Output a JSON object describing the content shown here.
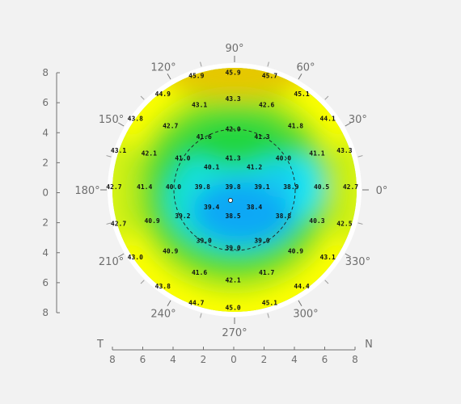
{
  "chart_data": {
    "type": "heatmap",
    "title": "",
    "colors": {
      "low": "#0aa8f5",
      "mid_low": "#14e6f2",
      "mid": "#22d640",
      "mid_high": "#a9e810",
      "high": "#ffff00",
      "max": "#e6c800",
      "background": "#f2f2f2",
      "axis": "#707070"
    },
    "angle_labels": [
      {
        "angle": 0,
        "label": "0°"
      },
      {
        "angle": 30,
        "label": "30°"
      },
      {
        "angle": 60,
        "label": "60°"
      },
      {
        "angle": 90,
        "label": "90°"
      },
      {
        "angle": 120,
        "label": "120°"
      },
      {
        "angle": 150,
        "label": "150°"
      },
      {
        "angle": 180,
        "label": "180°"
      },
      {
        "angle": 210,
        "label": "210°"
      },
      {
        "angle": 240,
        "label": "240°"
      },
      {
        "angle": 270,
        "label": "270°"
      },
      {
        "angle": 300,
        "label": "300°"
      },
      {
        "angle": 330,
        "label": "330°"
      }
    ],
    "x_axis": {
      "left_label": "T",
      "right_label": "N",
      "ticks": [
        "8",
        "6",
        "4",
        "2",
        "0",
        "2",
        "4",
        "6",
        "8"
      ],
      "range": [
        -8,
        8
      ]
    },
    "y_axis": {
      "ticks": [
        "8",
        "6",
        "4",
        "2",
        "0",
        "2",
        "4",
        "6",
        "8"
      ],
      "range": [
        -8,
        8
      ]
    },
    "values": [
      {
        "x": -2.5,
        "y": 7.5,
        "v": "45.9"
      },
      {
        "x": -0.1,
        "y": 7.7,
        "v": "45.9"
      },
      {
        "x": 2.3,
        "y": 7.5,
        "v": "45.7"
      },
      {
        "x": -4.7,
        "y": 6.3,
        "v": "44.9"
      },
      {
        "x": 4.4,
        "y": 6.3,
        "v": "45.1"
      },
      {
        "x": -2.3,
        "y": 5.6,
        "v": "43.1"
      },
      {
        "x": -0.1,
        "y": 6.0,
        "v": "43.3"
      },
      {
        "x": 2.1,
        "y": 5.6,
        "v": "42.6"
      },
      {
        "x": -6.5,
        "y": 4.7,
        "v": "43.8"
      },
      {
        "x": 6.1,
        "y": 4.7,
        "v": "44.1"
      },
      {
        "x": -4.2,
        "y": 4.2,
        "v": "42.7"
      },
      {
        "x": -0.1,
        "y": 4.0,
        "v": "42.0"
      },
      {
        "x": 4.0,
        "y": 4.2,
        "v": "41.8"
      },
      {
        "x": -2.0,
        "y": 3.5,
        "v": "41.6"
      },
      {
        "x": 1.8,
        "y": 3.5,
        "v": "41.3"
      },
      {
        "x": -7.6,
        "y": 2.6,
        "v": "43.1"
      },
      {
        "x": -5.6,
        "y": 2.4,
        "v": "42.1"
      },
      {
        "x": -3.4,
        "y": 2.1,
        "v": "41.0"
      },
      {
        "x": -0.1,
        "y": 2.1,
        "v": "41.3"
      },
      {
        "x": 3.2,
        "y": 2.1,
        "v": "40.0"
      },
      {
        "x": 5.4,
        "y": 2.4,
        "v": "41.1"
      },
      {
        "x": 7.2,
        "y": 2.6,
        "v": "43.3"
      },
      {
        "x": -1.5,
        "y": 1.5,
        "v": "40.1"
      },
      {
        "x": 1.3,
        "y": 1.5,
        "v": "41.2"
      },
      {
        "x": -7.9,
        "y": 0.2,
        "v": "42.7"
      },
      {
        "x": -5.9,
        "y": 0.2,
        "v": "41.4"
      },
      {
        "x": -4.0,
        "y": 0.2,
        "v": "40.0"
      },
      {
        "x": -2.1,
        "y": 0.2,
        "v": "39.8"
      },
      {
        "x": -0.1,
        "y": 0.2,
        "v": "39.8"
      },
      {
        "x": 1.8,
        "y": 0.2,
        "v": "39.1"
      },
      {
        "x": 3.7,
        "y": 0.2,
        "v": "38.9"
      },
      {
        "x": 5.7,
        "y": 0.2,
        "v": "40.5"
      },
      {
        "x": 7.6,
        "y": 0.2,
        "v": "42.7"
      },
      {
        "x": -1.5,
        "y": -1.1,
        "v": "39.4"
      },
      {
        "x": 1.3,
        "y": -1.1,
        "v": "38.4"
      },
      {
        "x": -7.6,
        "y": -2.2,
        "v": "42.7"
      },
      {
        "x": -5.4,
        "y": -2.0,
        "v": "40.9"
      },
      {
        "x": -3.4,
        "y": -1.7,
        "v": "39.2"
      },
      {
        "x": -0.1,
        "y": -1.7,
        "v": "38.5"
      },
      {
        "x": 3.2,
        "y": -1.7,
        "v": "38.8"
      },
      {
        "x": 5.4,
        "y": -2.0,
        "v": "40.3"
      },
      {
        "x": 7.2,
        "y": -2.2,
        "v": "42.5"
      },
      {
        "x": -2.0,
        "y": -3.3,
        "v": "39.0"
      },
      {
        "x": 1.8,
        "y": -3.3,
        "v": "39.0"
      },
      {
        "x": -0.1,
        "y": -3.8,
        "v": "39.0"
      },
      {
        "x": -6.5,
        "y": -4.4,
        "v": "43.0"
      },
      {
        "x": -4.2,
        "y": -4.0,
        "v": "40.9"
      },
      {
        "x": 4.0,
        "y": -4.0,
        "v": "40.9"
      },
      {
        "x": 6.1,
        "y": -4.4,
        "v": "43.1"
      },
      {
        "x": -2.3,
        "y": -5.4,
        "v": "41.6"
      },
      {
        "x": 2.1,
        "y": -5.4,
        "v": "41.7"
      },
      {
        "x": -0.1,
        "y": -5.9,
        "v": "42.1"
      },
      {
        "x": -4.7,
        "y": -6.3,
        "v": "43.8"
      },
      {
        "x": 4.4,
        "y": -6.3,
        "v": "44.4"
      },
      {
        "x": -2.5,
        "y": -7.4,
        "v": "44.7"
      },
      {
        "x": -0.1,
        "y": -7.7,
        "v": "45.0"
      },
      {
        "x": 2.3,
        "y": -7.4,
        "v": "45.1"
      }
    ]
  }
}
